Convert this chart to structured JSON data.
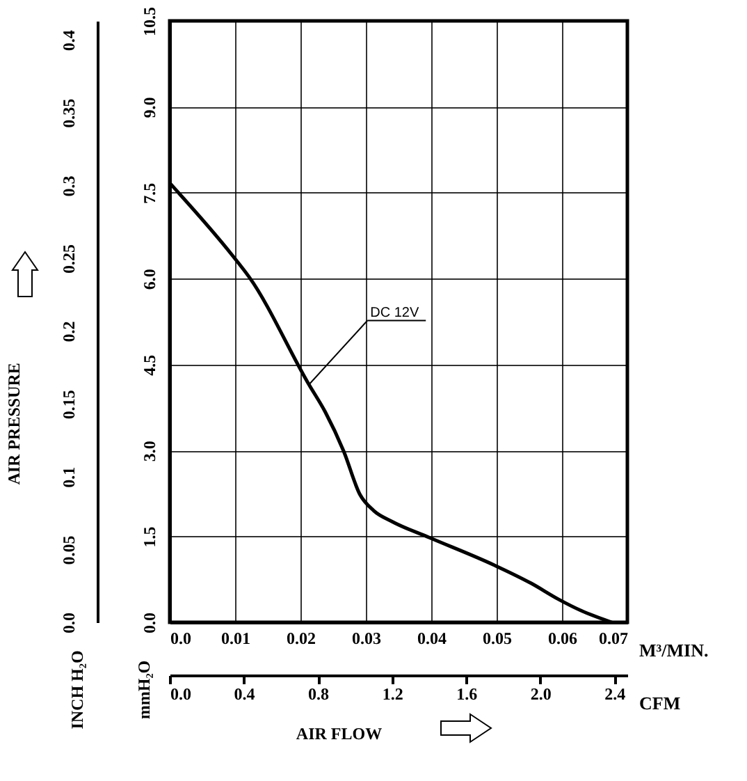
{
  "chart_data": {
    "type": "line",
    "xlabel": "M³/MIN.",
    "ylabel": "mmH₂O",
    "y2label": "INCH H₂O",
    "x2label": "CFM",
    "annotations": [
      "AIR PRESSURE",
      "AIR FLOW"
    ],
    "xlim": [
      0,
      0.07
    ],
    "xticks": [
      {
        "value": 0,
        "label": "0.0"
      },
      0.01,
      0.02,
      0.03,
      0.04,
      0.05,
      0.06,
      0.07
    ],
    "ylim": [
      0,
      10.5
    ],
    "yticks": [
      {
        "value": 0,
        "label": "0.0"
      },
      1.5,
      {
        "value": 3,
        "label": "3.0"
      },
      4.5,
      {
        "value": 6,
        "label": "6.0"
      },
      7.5,
      {
        "value": 9,
        "label": "9.0"
      },
      10.5
    ],
    "y2lim": [
      0,
      0.413
    ],
    "y2ticks": [
      {
        "value": 0,
        "label": "0.0"
      },
      0.05,
      0.1,
      0.15,
      0.2,
      0.25,
      0.3,
      0.35,
      0.4
    ],
    "x2lim": [
      0,
      2.47
    ],
    "x2ticks": [
      {
        "value": 0,
        "label": "0.0"
      },
      0.4,
      0.8,
      1.2,
      1.6,
      {
        "value": 2,
        "label": "2.0"
      },
      2.4
    ],
    "grid": true,
    "series": [
      {
        "name": "DC 12V",
        "color": "#000000",
        "x": [
          0,
          0.0097,
          0.0122,
          0.0213,
          0.0238,
          0.0266,
          0.0291,
          0.0312,
          0.034,
          0.0397,
          0.0496,
          0.0553,
          0.0595,
          0.063,
          0.0676
        ],
        "values": [
          7.67,
          6.39,
          6.02,
          4.15,
          3.67,
          2.99,
          2.23,
          1.95,
          1.76,
          1.48,
          1.0,
          0.68,
          0.4,
          0.2,
          0
        ]
      }
    ]
  }
}
